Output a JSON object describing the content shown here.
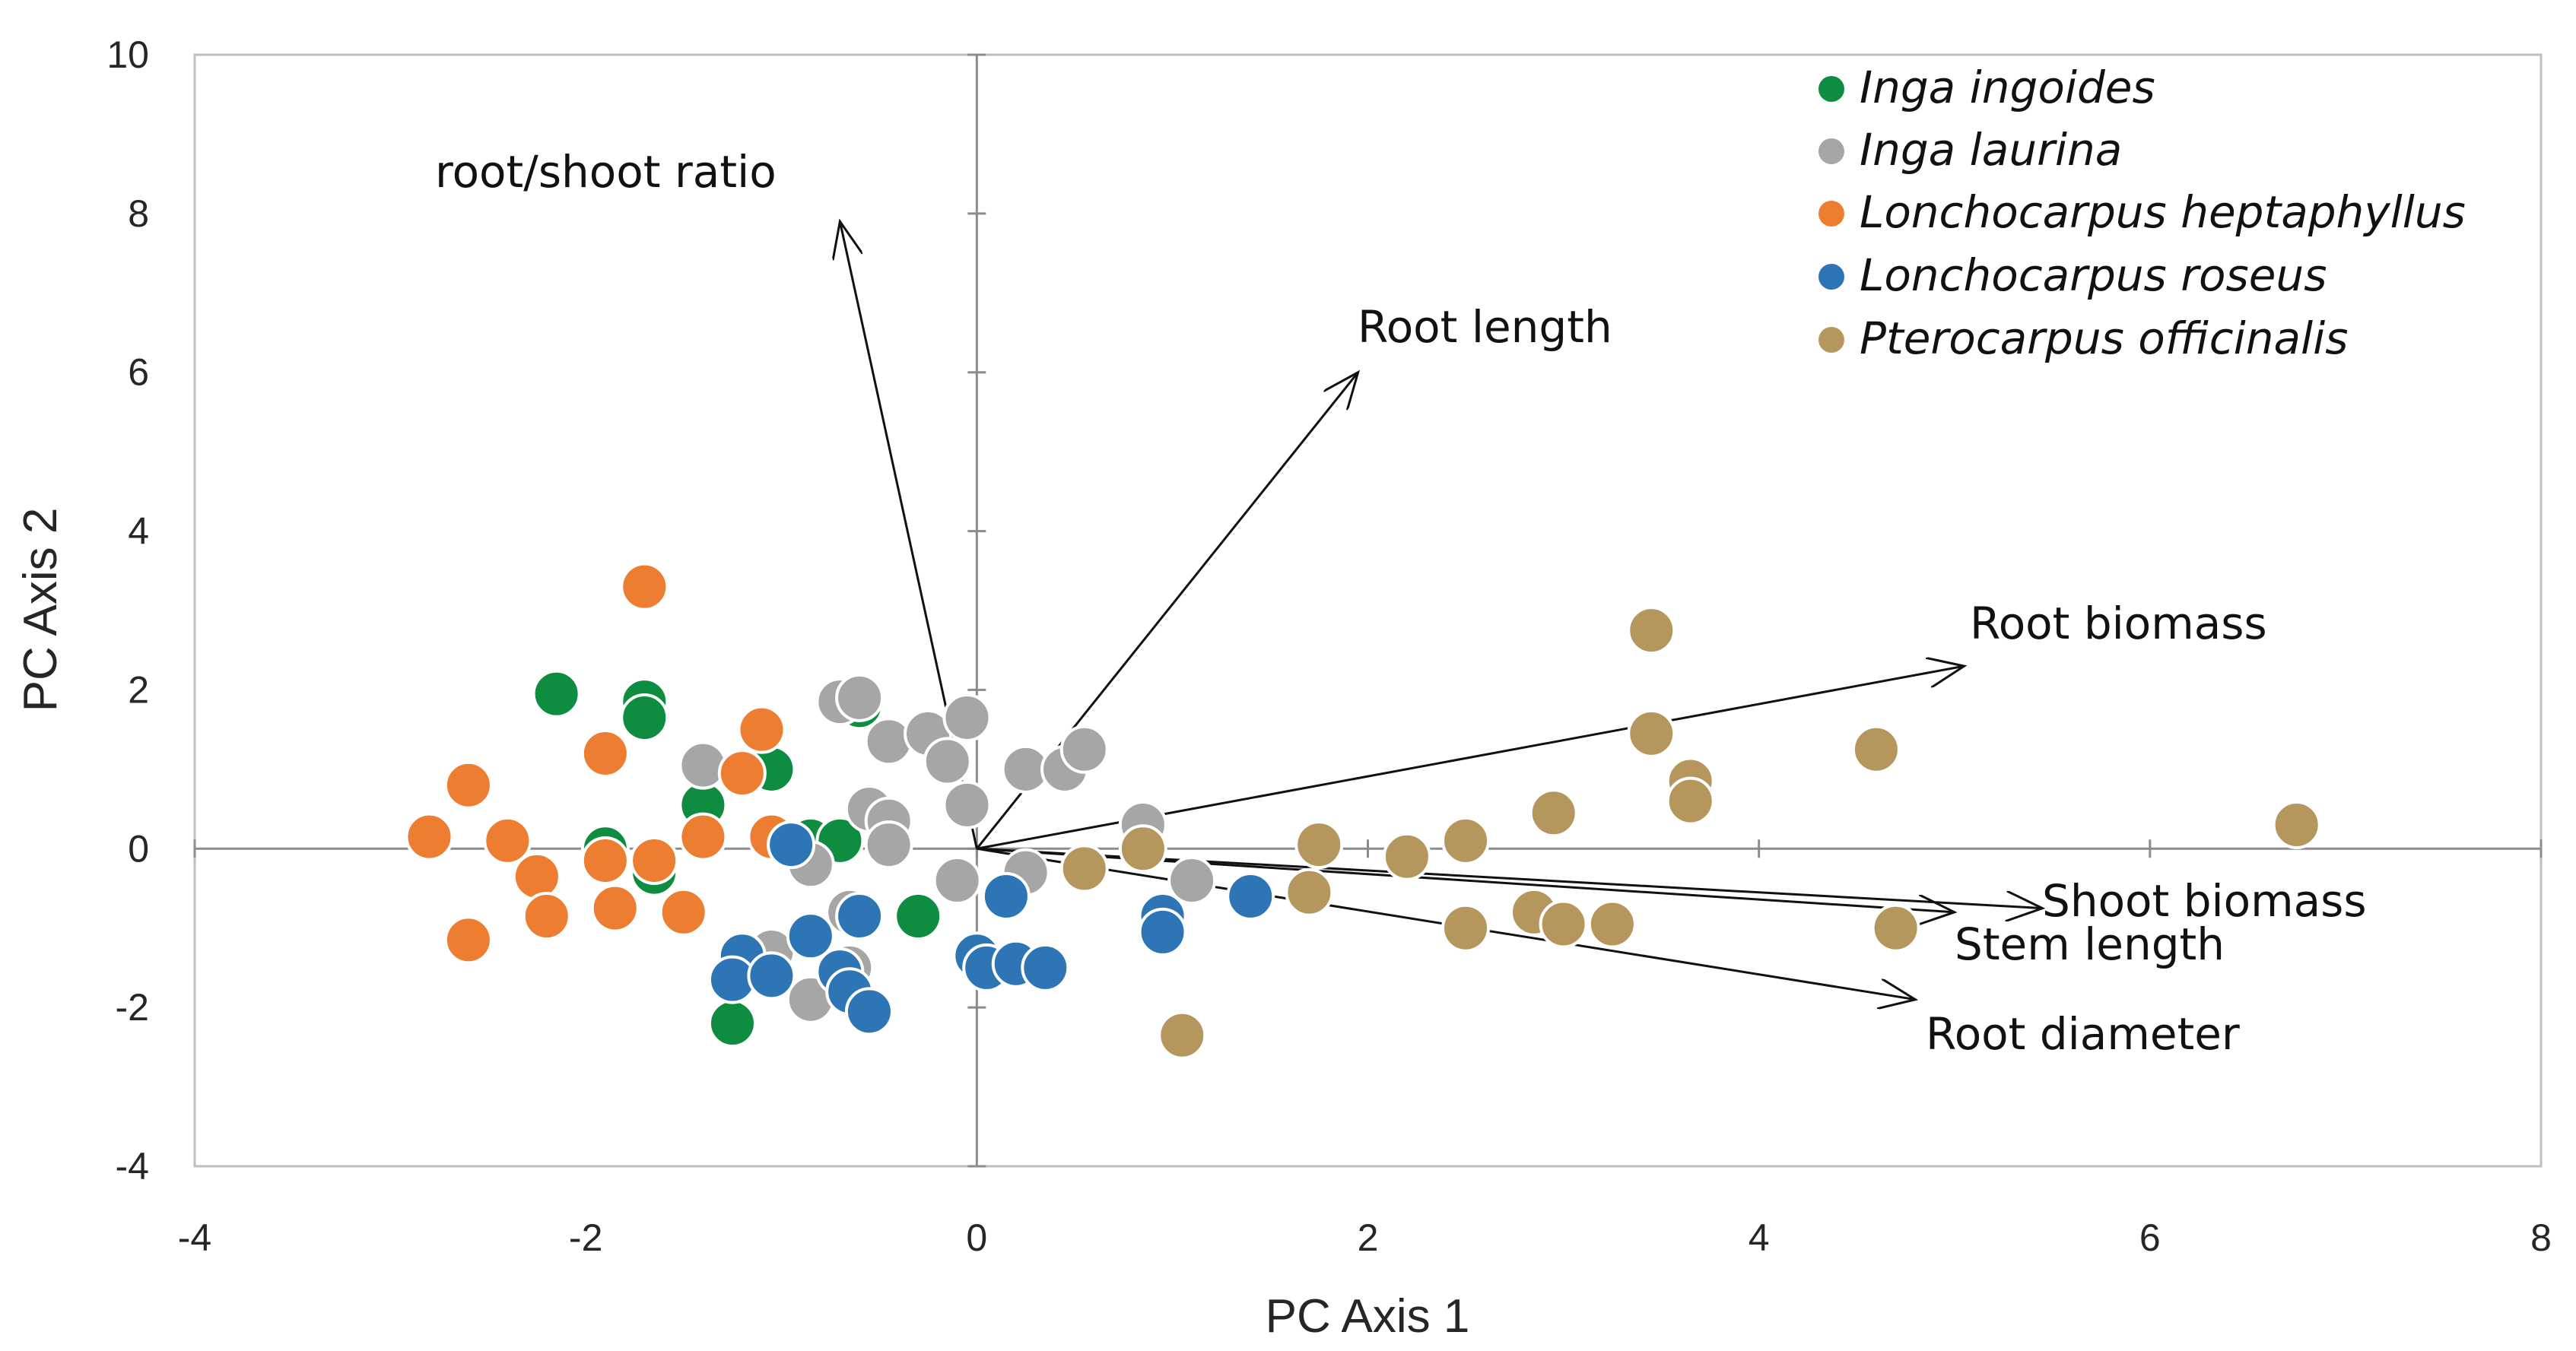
{
  "chart_data": {
    "type": "scatter",
    "xlabel": "PC Axis 1",
    "ylabel": "PC Axis 2",
    "xlim": [
      -4,
      8
    ],
    "ylim": [
      -4,
      10
    ],
    "xticks": [
      -4,
      -2,
      0,
      2,
      4,
      6,
      8
    ],
    "yticks": [
      -4,
      -2,
      0,
      2,
      4,
      6,
      8,
      10
    ],
    "legend_position": "top-right",
    "series": [
      {
        "name": "Inga ingoides",
        "color": "#0E8C3F",
        "points": [
          [
            -2.15,
            1.95
          ],
          [
            -1.7,
            1.85
          ],
          [
            -1.7,
            1.65
          ],
          [
            -1.4,
            0.55
          ],
          [
            -1.05,
            1.0
          ],
          [
            -1.9,
            0.0
          ],
          [
            -1.65,
            -0.3
          ],
          [
            -0.85,
            0.1
          ],
          [
            -0.7,
            0.1
          ],
          [
            -0.3,
            -0.85
          ],
          [
            -1.25,
            -2.2
          ],
          [
            -0.6,
            1.8
          ]
        ]
      },
      {
        "name": "Inga laurina",
        "color": "#A6A6A6",
        "points": [
          [
            -0.7,
            1.85
          ],
          [
            -0.6,
            1.9
          ],
          [
            -0.45,
            1.35
          ],
          [
            -0.25,
            1.45
          ],
          [
            -0.05,
            1.65
          ],
          [
            -0.15,
            1.1
          ],
          [
            0.25,
            1.0
          ],
          [
            0.45,
            1.0
          ],
          [
            0.55,
            1.25
          ],
          [
            -1.4,
            1.05
          ],
          [
            -0.55,
            0.5
          ],
          [
            -0.45,
            0.35
          ],
          [
            -0.45,
            0.05
          ],
          [
            -0.05,
            0.55
          ],
          [
            -0.1,
            -0.4
          ],
          [
            0.25,
            -0.3
          ],
          [
            0.85,
            0.3
          ],
          [
            1.1,
            -0.4
          ],
          [
            -1.05,
            -1.3
          ],
          [
            -0.85,
            -0.2
          ],
          [
            -0.85,
            -1.9
          ],
          [
            -0.65,
            -1.5
          ],
          [
            -0.65,
            -0.8
          ]
        ]
      },
      {
        "name": "Lonchocarpus heptaphyllus",
        "color": "#ED7D31",
        "points": [
          [
            -1.7,
            3.3
          ],
          [
            -2.6,
            0.8
          ],
          [
            -1.9,
            1.2
          ],
          [
            -1.1,
            1.5
          ],
          [
            -1.2,
            0.95
          ],
          [
            -2.8,
            0.15
          ],
          [
            -2.4,
            0.1
          ],
          [
            -2.25,
            -0.35
          ],
          [
            -2.2,
            -0.85
          ],
          [
            -1.9,
            -0.15
          ],
          [
            -1.65,
            -0.15
          ],
          [
            -1.85,
            -0.75
          ],
          [
            -1.5,
            -0.8
          ],
          [
            -1.4,
            0.15
          ],
          [
            -1.05,
            0.15
          ],
          [
            -2.6,
            -1.15
          ]
        ]
      },
      {
        "name": "Lonchocarpus roseus",
        "color": "#2E75B6",
        "points": [
          [
            -0.95,
            0.05
          ],
          [
            -1.2,
            -1.35
          ],
          [
            -1.25,
            -1.65
          ],
          [
            -1.05,
            -1.6
          ],
          [
            -0.85,
            -1.1
          ],
          [
            -0.7,
            -1.55
          ],
          [
            -0.65,
            -1.8
          ],
          [
            -0.6,
            -0.85
          ],
          [
            -0.55,
            -2.05
          ],
          [
            0.0,
            -1.35
          ],
          [
            0.05,
            -1.5
          ],
          [
            0.2,
            -1.45
          ],
          [
            0.35,
            -1.5
          ],
          [
            0.15,
            -0.6
          ],
          [
            0.95,
            -0.85
          ],
          [
            0.95,
            -1.05
          ],
          [
            1.4,
            -0.6
          ]
        ]
      },
      {
        "name": "Pterocarpus officinalis",
        "color": "#B5975E",
        "points": [
          [
            3.45,
            2.75
          ],
          [
            3.45,
            1.45
          ],
          [
            3.65,
            0.85
          ],
          [
            3.65,
            0.6
          ],
          [
            2.95,
            0.45
          ],
          [
            4.6,
            1.25
          ],
          [
            6.75,
            0.3
          ],
          [
            0.55,
            -0.25
          ],
          [
            0.85,
            0.0
          ],
          [
            1.75,
            0.05
          ],
          [
            2.2,
            -0.1
          ],
          [
            2.5,
            0.1
          ],
          [
            1.7,
            -0.55
          ],
          [
            2.85,
            -0.8
          ],
          [
            3.0,
            -0.95
          ],
          [
            3.25,
            -0.95
          ],
          [
            2.5,
            -1.0
          ],
          [
            4.7,
            -1.0
          ],
          [
            1.05,
            -2.35
          ]
        ]
      }
    ],
    "vectors": [
      {
        "label": "root/shoot ratio",
        "end": [
          -0.7,
          7.9
        ]
      },
      {
        "label": "Root length",
        "end": [
          1.95,
          6.0
        ]
      },
      {
        "label": "Root biomass",
        "end": [
          5.05,
          2.3
        ]
      },
      {
        "label": "Shoot biomass",
        "end": [
          5.45,
          -0.75
        ]
      },
      {
        "label": "Stem length",
        "end": [
          5.0,
          -0.8
        ]
      },
      {
        "label": "Root diameter",
        "end": [
          4.8,
          -1.9
        ]
      }
    ]
  },
  "legend": [
    {
      "label": "Inga ingoides",
      "color": "#0E8C3F"
    },
    {
      "label": "Inga laurina",
      "color": "#A6A6A6"
    },
    {
      "label": "Lonchocarpus heptaphyllus",
      "color": "#ED7D31"
    },
    {
      "label": "Lonchocarpus roseus",
      "color": "#2E75B6"
    },
    {
      "label": "Pterocarpus officinalis",
      "color": "#B5975E"
    }
  ],
  "vector_labels": {
    "root_shoot": "root/shoot ratio",
    "root_length": "Root length",
    "root_biomass": "Root biomass",
    "shoot_biomass": "Shoot biomass",
    "stem_length": "Stem length",
    "root_diameter": "Root diameter"
  }
}
